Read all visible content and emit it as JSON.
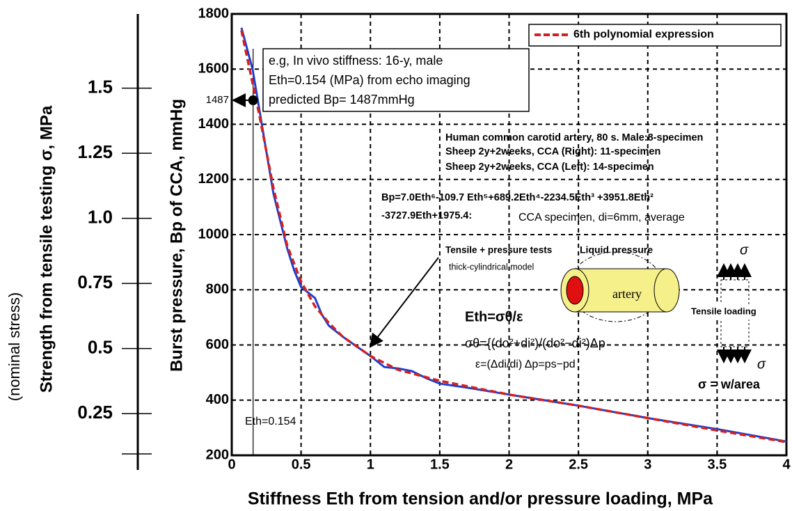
{
  "chart_data": {
    "type": "line",
    "xlabel": "Stiffness Eth from tension and/or pressure loading, MPa",
    "ylabel": "Burst pressure, Bp of CCA, mmHg",
    "y2label": "Strength from tensile testing σ, MPa",
    "y2note": "(nominal stress)",
    "xlim": [
      0,
      4
    ],
    "xticks": [
      0,
      0.5,
      1,
      1.5,
      2,
      2.5,
      3,
      3.5,
      4
    ],
    "ylim": [
      200,
      1800
    ],
    "yticks": [
      200,
      400,
      600,
      800,
      1000,
      1200,
      1400,
      1600,
      1800
    ],
    "y2lim": [
      0.09,
      1.785
    ],
    "y2ticks": [
      0.25,
      0.5,
      0.75,
      {
        "value": 1,
        "label": "1.0"
      },
      1.25,
      1.5
    ],
    "grid": true,
    "legend": "top-right",
    "series": [
      {
        "color": "#1f3fd0",
        "line_style": "solid",
        "x": [
          0.07,
          0.15,
          0.2,
          0.25,
          0.3,
          0.35,
          0.4,
          0.45,
          0.5,
          0.55,
          0.6,
          0.65,
          0.7,
          0.8,
          0.9,
          1.0,
          1.1,
          1.2,
          1.3,
          1.4,
          1.5,
          1.7,
          2.0,
          2.5,
          3.0,
          3.5,
          4.0
        ],
        "values": [
          1750,
          1600,
          1450,
          1300,
          1150,
          1050,
          950,
          870,
          810,
          790,
          770,
          710,
          670,
          630,
          595,
          560,
          520,
          515,
          505,
          480,
          460,
          445,
          420,
          380,
          335,
          295,
          250
        ]
      },
      {
        "name": "6th polynomial expression",
        "color": "#d42020",
        "line_style": "dashed",
        "x": [
          0.07,
          0.2,
          0.3,
          0.4,
          0.5,
          0.6,
          0.7,
          0.8,
          1.0,
          1.2,
          1.5,
          2.0,
          2.5,
          3.0,
          3.5,
          4.0
        ],
        "values": [
          1740,
          1430,
          1170,
          960,
          830,
          740,
          680,
          630,
          560,
          510,
          470,
          420,
          380,
          335,
          290,
          248
        ]
      }
    ],
    "highlight": {
      "x": 0.154,
      "y": 1487,
      "x_label": "Eth=0.154"
    },
    "annotations": [
      "e.g, In vivo stiffness: 16-y, male",
      "Eth=0.154 (MPa) from echo imaging",
      "predicted Bp= 1487mmHg",
      "Human common carotid artery, 80 s. Male:8-specimen",
      "Sheep 2y+2weeks, CCA (Right): 11-specimen",
      "Sheep 2y+2weeks, CCA (Left): 14-specimen",
      "Bp=7.0Eth⁶-109.7 Eth⁵+689.2Eth⁴-2234.5Eth³ +3951.8Eth²",
      "-3727.9Eth+1975.4:",
      "CCA specimen, di=6mm, average",
      "Tensile + pressure tests",
      "thick-cylindrical model",
      "Liquid pressure",
      "artery",
      "σ",
      "Tensile loading",
      "σ",
      "σ = w/area",
      "Eth=σθ/ε",
      "σθ={(do²+di²)/(do²−di²)Δp",
      "ε=(Δdi/di)    Δp=ps−pd"
    ]
  }
}
